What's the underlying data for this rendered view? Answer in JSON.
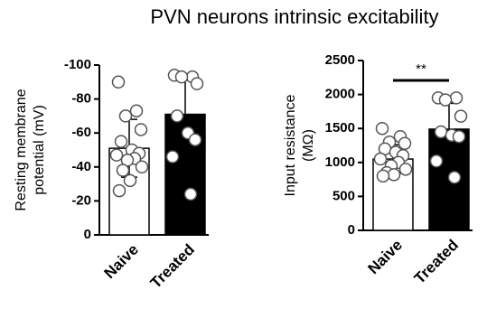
{
  "title": "PVN neurons intrinsic excitability",
  "chart_data": [
    {
      "type": "bar",
      "ylabel": [
        "Resting membrane",
        "potential (mV)"
      ],
      "categories": [
        "Naive",
        "Treated"
      ],
      "values": [
        -51,
        -71
      ],
      "errors": [
        17,
        20
      ],
      "colors": [
        "#ffffff",
        "#000000"
      ],
      "points": [
        [
          -90,
          -73,
          -70,
          -62,
          -55,
          -50,
          -48,
          -47,
          -45,
          -44,
          -40,
          -38,
          -32,
          -26
        ],
        [
          -94,
          -93,
          -93,
          -89,
          -70,
          -60,
          -56,
          -46,
          -24
        ]
      ],
      "ylim": [
        0,
        -100
      ],
      "yticks": [
        0,
        -20,
        -40,
        -60,
        -80,
        -100
      ]
    },
    {
      "type": "bar",
      "ylabel": [
        "Input resistance",
        "(MΩ)"
      ],
      "categories": [
        "Naive",
        "Treated"
      ],
      "values": [
        1050,
        1490
      ],
      "errors": [
        210,
        380
      ],
      "colors": [
        "#ffffff",
        "#000000"
      ],
      "points": [
        [
          1500,
          1380,
          1300,
          1280,
          1200,
          1150,
          1100,
          1050,
          1000,
          950,
          900,
          850,
          820,
          800
        ],
        [
          1950,
          1950,
          1920,
          1680,
          1450,
          1400,
          1380,
          1020,
          780
        ]
      ],
      "ylim": [
        0,
        2500
      ],
      "yticks": [
        0,
        500,
        1000,
        1500,
        2000,
        2500
      ],
      "annotation": "**"
    }
  ]
}
